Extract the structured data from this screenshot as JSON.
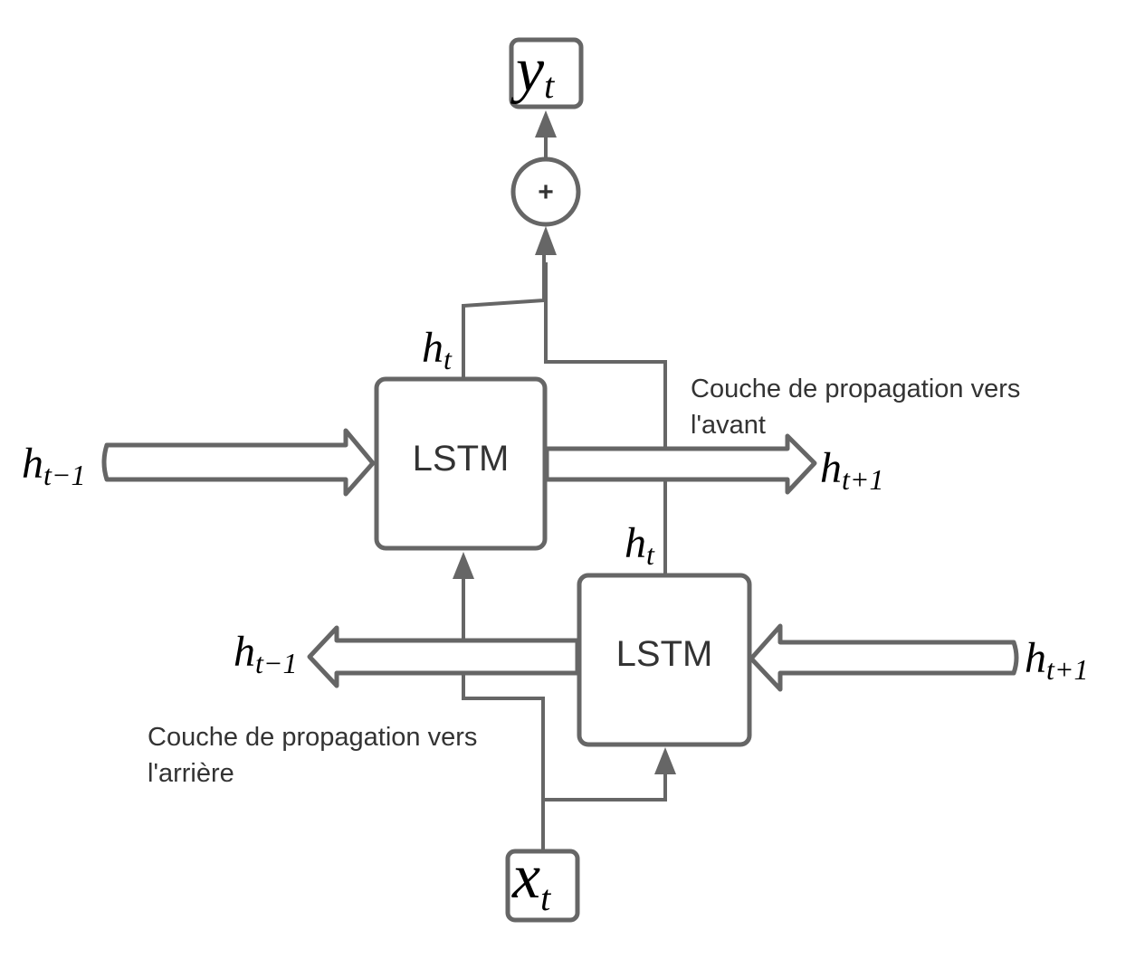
{
  "diagram": {
    "output_node": {
      "base": "y",
      "sub": "t"
    },
    "input_node": {
      "base": "x",
      "sub": "t"
    },
    "sum_symbol": "+",
    "forward_layer": {
      "cell_label": "LSTM",
      "caption_line1": "Couche de propagation vers",
      "caption_line2": "l'avant",
      "in_state": {
        "base": "h",
        "sub": "t−1"
      },
      "out_state": {
        "base": "h",
        "sub": "t+1"
      },
      "hidden_state": {
        "base": "h",
        "sub": "t"
      }
    },
    "backward_layer": {
      "cell_label": "LSTM",
      "caption_line1": "Couche de propagation vers",
      "caption_line2": "l'arrière",
      "in_state": {
        "base": "h",
        "sub": "t+1"
      },
      "out_state": {
        "base": "h",
        "sub": "t−1"
      },
      "hidden_state": {
        "base": "h",
        "sub": "t"
      }
    }
  }
}
